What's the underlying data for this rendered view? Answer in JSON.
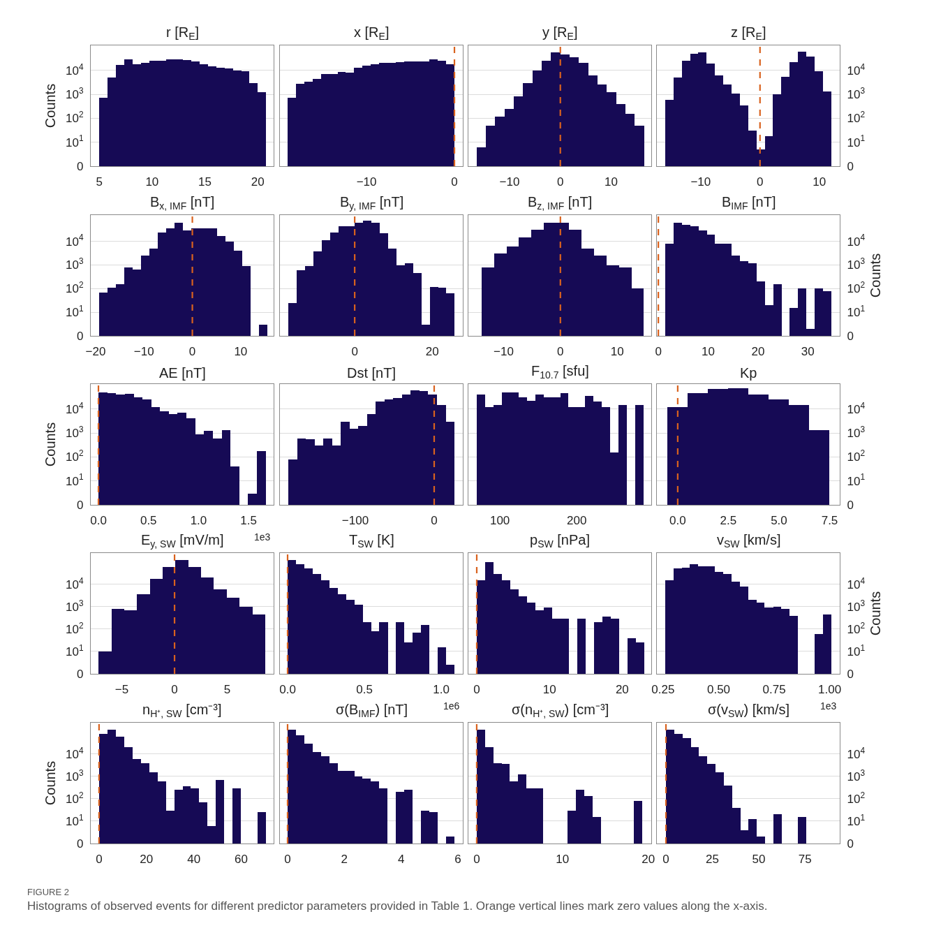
{
  "chart_data": [
    {
      "type": "histogram",
      "title": "r [R$_{E}$]",
      "ylabel": "Counts",
      "log": true,
      "grid": "y",
      "xlim": [
        4.2,
        21.5
      ],
      "xticks": [
        5,
        10,
        15,
        20
      ],
      "ylim": [
        0,
        110000
      ],
      "yticks": [
        0,
        {
          "value": 10,
          "label": "10$^{1}$"
        },
        {
          "value": 100,
          "label": "10$^{2}$"
        },
        {
          "value": 1000,
          "label": "10$^{3}$"
        },
        {
          "value": 10000,
          "label": "10$^{4}$"
        }
      ],
      "bins": [
        5,
        5.79,
        6.58,
        7.37,
        8.16,
        8.95,
        9.74,
        10.53,
        11.32,
        12.11,
        12.9,
        13.69,
        14.48,
        15.27,
        16.06,
        16.85,
        17.64,
        18.43,
        19.22,
        20.01,
        20.8
      ],
      "series": [
        {
          "color": "#160a55",
          "values": [
            700,
            5000,
            17000,
            28000,
            18000,
            21000,
            25000,
            26000,
            29000,
            28000,
            27000,
            24000,
            18000,
            15000,
            13000,
            12000,
            10000,
            9000,
            3000,
            1200
          ]
        }
      ]
    },
    {
      "type": "histogram",
      "title": "x [R$_{E}$]",
      "log": true,
      "grid": "y",
      "tick_labels": "x",
      "xlim": [
        -19.85,
        0.95
      ],
      "xticks": [
        {
          "value": -10,
          "label": "−10"
        },
        0
      ],
      "ylim": [
        0,
        110000
      ],
      "yticks": [
        {
          "value": 10,
          "label": null
        },
        {
          "value": 100,
          "label": null
        },
        {
          "value": 1000,
          "label": null
        },
        {
          "value": 10000,
          "label": null
        }
      ],
      "bins": [
        -19,
        -18.05,
        -17.1,
        -16.15,
        -15.2,
        -14.25,
        -13.3,
        -12.35,
        -11.4,
        -10.45,
        -9.5,
        -8.55,
        -7.6,
        -6.65,
        -5.7,
        -4.75,
        -3.8,
        -2.85,
        -1.9,
        -0.95,
        0
      ],
      "series": [
        {
          "color": "#160a55",
          "values": [
            700,
            2800,
            3300,
            4300,
            7000,
            6800,
            8500,
            8200,
            13000,
            16000,
            18000,
            20000,
            21000,
            22000,
            23000,
            24000,
            23000,
            28000,
            26000,
            18000
          ]
        }
      ],
      "ref_lines": [
        {
          "axis": "x",
          "value": 0,
          "color": "#d9621e",
          "line_style": "dashed"
        }
      ]
    },
    {
      "type": "histogram",
      "title": "y [R$_{E}$]",
      "log": true,
      "grid": "y",
      "tick_labels": "x",
      "xlim": [
        -18.1,
        17.9
      ],
      "xticks": [
        {
          "value": -10,
          "label": "−10"
        },
        0,
        10
      ],
      "ylim": [
        0,
        110000
      ],
      "yticks": [
        {
          "value": 10,
          "label": null
        },
        {
          "value": 100,
          "label": null
        },
        {
          "value": 1000,
          "label": null
        },
        {
          "value": 10000,
          "label": null
        }
      ],
      "bins": [
        -16.5,
        -14.67,
        -12.83,
        -11,
        -9.17,
        -7.33,
        -5.5,
        -3.67,
        -1.83,
        0,
        1.83,
        3.67,
        5.5,
        7.33,
        9.17,
        11,
        12.83,
        14.67,
        16.5
      ],
      "series": [
        {
          "color": "#160a55",
          "values": [
            6,
            50,
            120,
            250,
            800,
            3000,
            10000,
            25000,
            55000,
            45000,
            35000,
            20000,
            6000,
            2500,
            1200,
            400,
            150,
            50
          ]
        }
      ],
      "ref_lines": [
        {
          "axis": "x",
          "value": 0,
          "color": "#d9621e",
          "line_style": "dashed"
        }
      ]
    },
    {
      "type": "histogram",
      "title": "z [R$_{E}$]",
      "log": "y2",
      "grid": "y",
      "xlim": [
        -17.4,
        13.45
      ],
      "xticks": [
        {
          "value": -10,
          "label": "−10"
        },
        0,
        10
      ],
      "y2lim": [
        0,
        110000
      ],
      "y2ticks": [
        0,
        {
          "value": 10,
          "label": "10$^{1}$"
        },
        {
          "value": 100,
          "label": "10$^{2}$"
        },
        {
          "value": 1000,
          "label": "10$^{3}$"
        },
        {
          "value": 10000,
          "label": "10$^{4}$"
        }
      ],
      "bins": [
        -16,
        -14.6,
        -13.2,
        -11.8,
        -10.4,
        -9,
        -7.6,
        -6.2,
        -4.8,
        -3.4,
        -2,
        -0.6,
        0.8,
        2.2,
        3.6,
        5,
        6.4,
        7.8,
        9.2,
        10.6,
        12
      ],
      "series": [
        {
          "color": "#160a55",
          "axis": "y2",
          "values": [
            600,
            5000,
            25000,
            50000,
            55000,
            19000,
            6000,
            2600,
            1100,
            340,
            30,
            5,
            18,
            1000,
            5500,
            22000,
            60000,
            38000,
            9500,
            1300
          ]
        }
      ],
      "ref_lines": [
        {
          "axis": "x",
          "value": 0,
          "color": "#d9621e",
          "line_style": "dashed"
        }
      ]
    },
    {
      "type": "histogram",
      "title": "B$_{x, IMF}$ [nT]",
      "log": true,
      "grid": "y",
      "xlim": [
        -21,
        16.8
      ],
      "xticks": [
        {
          "value": -20,
          "label": "−20"
        },
        {
          "value": -10,
          "label": "−10"
        },
        0,
        10
      ],
      "ylim": [
        0,
        130000
      ],
      "yticks": [
        0,
        {
          "value": 10,
          "label": "10$^{1}$"
        },
        {
          "value": 100,
          "label": "10$^{2}$"
        },
        {
          "value": 1000,
          "label": "10$^{3}$"
        },
        {
          "value": 10000,
          "label": "10$^{4}$"
        }
      ],
      "bins": [
        -19.3,
        -17.56,
        -15.82,
        -14.08,
        -12.34,
        -10.6,
        -8.86,
        -7.12,
        -5.38,
        -3.64,
        -1.9,
        -0.16,
        1.58,
        3.32,
        5.06,
        6.8,
        8.54,
        10.28,
        12.02,
        13.76,
        15.5
      ],
      "series": [
        {
          "color": "#160a55",
          "values": [
            70,
            110,
            150,
            800,
            650,
            2500,
            5000,
            23000,
            35000,
            60000,
            30000,
            35000,
            35000,
            35000,
            17000,
            9500,
            4000,
            900,
            0,
            3
          ]
        }
      ],
      "ref_lines": [
        {
          "axis": "x",
          "value": 0,
          "color": "#d9621e",
          "line_style": "dashed"
        }
      ]
    },
    {
      "type": "histogram",
      "title": "B$_{y, IMF}$ [nT]",
      "log": true,
      "grid": "y",
      "tick_labels": "x",
      "xlim": [
        -19.3,
        27.9
      ],
      "xticks": [
        0,
        20
      ],
      "ylim": [
        0,
        130000
      ],
      "yticks": [
        {
          "value": 10,
          "label": null
        },
        {
          "value": 100,
          "label": null
        },
        {
          "value": 1000,
          "label": null
        },
        {
          "value": 10000,
          "label": null
        }
      ],
      "bins": [
        -17.1,
        -14.96,
        -12.81,
        -10.67,
        -8.52,
        -6.38,
        -4.23,
        -2.09,
        0.06,
        2.2,
        4.35,
        6.5,
        8.64,
        10.79,
        12.93,
        15.08,
        17.22,
        19.37,
        21.51,
        23.66,
        25.8
      ],
      "series": [
        {
          "color": "#160a55",
          "values": [
            25,
            600,
            900,
            3800,
            11000,
            23000,
            45000,
            45000,
            60000,
            75000,
            60000,
            22000,
            5000,
            1000,
            1200,
            450,
            3,
            120,
            110,
            65
          ]
        }
      ],
      "ref_lines": [
        {
          "axis": "x",
          "value": 0,
          "color": "#d9621e",
          "line_style": "dashed"
        }
      ]
    },
    {
      "type": "histogram",
      "title": "B$_{z, IMF}$ [nT]",
      "log": true,
      "grid": "y",
      "tick_labels": "x",
      "xlim": [
        -16.2,
        16.0
      ],
      "xticks": [
        {
          "value": -10,
          "label": "−10"
        },
        0,
        10
      ],
      "ylim": [
        0,
        130000
      ],
      "yticks": [
        {
          "value": 10,
          "label": null
        },
        {
          "value": 100,
          "label": null
        },
        {
          "value": 1000,
          "label": null
        },
        {
          "value": 10000,
          "label": null
        }
      ],
      "bins": [
        -13.9,
        -11.7,
        -9.5,
        -7.3,
        -5.1,
        -2.9,
        -0.7,
        1.5,
        3.7,
        5.9,
        8.1,
        10.3,
        12.5,
        14.7
      ],
      "series": [
        {
          "color": "#160a55",
          "values": [
            800,
            3000,
            6000,
            15000,
            32000,
            60000,
            60000,
            32000,
            5000,
            2500,
            1000,
            800,
            100
          ]
        }
      ],
      "ref_lines": [
        {
          "axis": "x",
          "value": 0,
          "color": "#d9621e",
          "line_style": "dashed"
        }
      ]
    },
    {
      "type": "histogram",
      "title": "B$_{IMF}$ [nT]",
      "y2label": "Counts",
      "log": "y2",
      "grid": "y",
      "xlim": [
        -0.3,
        36.4
      ],
      "xticks": [
        0,
        10,
        20,
        30
      ],
      "y2lim": [
        0,
        130000
      ],
      "y2ticks": [
        0,
        {
          "value": 10,
          "label": "10$^{1}$"
        },
        {
          "value": 100,
          "label": "10$^{2}$"
        },
        {
          "value": 1000,
          "label": "10$^{3}$"
        },
        {
          "value": 10000,
          "label": "10$^{4}$"
        }
      ],
      "bins": [
        1.4,
        3.07,
        4.73,
        6.4,
        8.06,
        9.73,
        11.39,
        13.06,
        14.72,
        16.39,
        18.05,
        19.72,
        21.38,
        23.05,
        24.71,
        26.38,
        28.04,
        29.71,
        31.37,
        33.04,
        34.7
      ],
      "series": [
        {
          "color": "#160a55",
          "axis": "y2",
          "values": [
            8000,
            60000,
            50000,
            45000,
            30000,
            20000,
            8000,
            8000,
            2500,
            1500,
            1200,
            200,
            20,
            150,
            0,
            15,
            100,
            2,
            100,
            80
          ]
        }
      ],
      "ref_lines": [
        {
          "axis": "x",
          "value": 0,
          "color": "#d9621e",
          "line_style": "dashed"
        }
      ]
    },
    {
      "type": "histogram",
      "title": "AE [nT]",
      "ylabel": "Counts",
      "log": true,
      "grid": "y",
      "xlim": [
        -0.077,
        1.75
      ],
      "xticks": [
        {
          "value": 0,
          "label": "0.0"
        },
        {
          "value": 0.5,
          "label": "0.5"
        },
        {
          "value": 1,
          "label": "1.0"
        },
        {
          "value": 1.5,
          "label": "1.5"
        }
      ],
      "ylim": [
        0,
        110000
      ],
      "yticks": [
        0,
        {
          "value": 10,
          "label": "10$^{1}$"
        },
        {
          "value": 100,
          "label": "10$^{2}$"
        },
        {
          "value": 1000,
          "label": "10$^{3}$"
        },
        {
          "value": 10000,
          "label": "10$^{4}$"
        }
      ],
      "bins": [
        0,
        0.088,
        0.176,
        0.264,
        0.352,
        0.44,
        0.527,
        0.615,
        0.703,
        0.791,
        0.879,
        0.967,
        1.055,
        1.143,
        1.231,
        1.319,
        1.406,
        1.494,
        1.582,
        1.67
      ],
      "series": [
        {
          "color": "#160a55",
          "values": [
            50000,
            45000,
            40000,
            42000,
            30000,
            25000,
            12000,
            8000,
            6000,
            7000,
            4000,
            900,
            1200,
            600,
            1300,
            40,
            0,
            3,
            170
          ]
        }
      ],
      "ref_lines": [
        {
          "axis": "x",
          "value": 0,
          "color": "#d9621e",
          "line_style": "dashed"
        }
      ],
      "annotations": [
        "1e3"
      ]
    },
    {
      "type": "histogram",
      "title": "Dst [nT]",
      "log": true,
      "grid": "y",
      "tick_labels": "x",
      "xlim": [
        -195.6,
        36.3
      ],
      "xticks": [
        {
          "value": -100,
          "label": "−100"
        },
        0
      ],
      "ylim": [
        0,
        110000
      ],
      "yticks": [
        {
          "value": 10,
          "label": null
        },
        {
          "value": 100,
          "label": null
        },
        {
          "value": 1000,
          "label": null
        },
        {
          "value": 10000,
          "label": null
        }
      ],
      "bins": [
        -185,
        -173.91,
        -162.82,
        -151.73,
        -140.64,
        -129.55,
        -118.46,
        -107.37,
        -96.28,
        -85.19,
        -74.1,
        -63.01,
        -51.92,
        -40.83,
        -29.74,
        -18.65,
        -7.56,
        3.53,
        14.62,
        25.7
      ],
      "series": [
        {
          "color": "#160a55",
          "values": [
            80,
            600,
            550,
            300,
            600,
            300,
            3000,
            1500,
            2000,
            6000,
            20000,
            25000,
            28000,
            40000,
            60000,
            55000,
            40000,
            15000,
            3000
          ]
        }
      ],
      "ref_lines": [
        {
          "axis": "x",
          "value": 0,
          "color": "#d9621e",
          "line_style": "dashed"
        }
      ]
    },
    {
      "type": "histogram",
      "title": "F$_{10.7}$ [sfu]",
      "log": true,
      "grid": "y",
      "tick_labels": "x",
      "xlim": [
        59,
        297
      ],
      "xticks": [
        100,
        200
      ],
      "ylim": [
        0,
        110000
      ],
      "yticks": [
        {
          "value": 10,
          "label": null
        },
        {
          "value": 100,
          "label": null
        },
        {
          "value": 1000,
          "label": null
        },
        {
          "value": 10000,
          "label": null
        }
      ],
      "bins": [
        70,
        80.85,
        91.7,
        102.55,
        113.4,
        124.25,
        135.1,
        145.95,
        156.8,
        167.65,
        178.5,
        189.35,
        200.2,
        211.05,
        221.9,
        232.75,
        243.6,
        254.45,
        265.3,
        276.15,
        287
      ],
      "series": [
        {
          "color": "#160a55",
          "values": [
            40000,
            12000,
            15000,
            50000,
            50000,
            30000,
            22000,
            40000,
            30000,
            30000,
            45000,
            12000,
            12000,
            35000,
            20000,
            12000,
            150,
            15000,
            0,
            15000
          ]
        }
      ]
    },
    {
      "type": "histogram",
      "title": "Kp",
      "log": "y2",
      "grid": "y",
      "xlim": [
        -1.03,
        8.0
      ],
      "xticks": [
        {
          "value": 0,
          "label": "0.0"
        },
        {
          "value": 2.5,
          "label": "2.5"
        },
        {
          "value": 5,
          "label": "5.0"
        },
        {
          "value": 7.5,
          "label": "7.5"
        }
      ],
      "y2lim": [
        0,
        110000
      ],
      "y2ticks": [
        0,
        {
          "value": 10,
          "label": "10$^{1}$"
        },
        {
          "value": 100,
          "label": "10$^{2}$"
        },
        {
          "value": 1000,
          "label": "10$^{3}$"
        },
        {
          "value": 10000,
          "label": "10$^{4}$"
        }
      ],
      "bins": [
        -0.5,
        0.5,
        1.5,
        2.5,
        3.5,
        4.5,
        5.5,
        6.5,
        7.5
      ],
      "series": [
        {
          "color": "#160a55",
          "axis": "y2",
          "values": [
            12000,
            45000,
            70000,
            75000,
            40000,
            25000,
            15000,
            1300
          ]
        }
      ],
      "ref_lines": [
        {
          "axis": "x",
          "value": 0,
          "color": "#d9621e",
          "line_style": "dashed"
        }
      ]
    },
    {
      "type": "histogram",
      "title": "E$_{y, SW}$ [mV/m]",
      "log": true,
      "grid": "y",
      "xlim": [
        -7.95,
        9.4
      ],
      "xticks": [
        {
          "value": -5,
          "label": "−5"
        },
        0,
        5
      ],
      "ylim": [
        0,
        250000
      ],
      "yticks": [
        0,
        {
          "value": 10,
          "label": "10$^{1}$"
        },
        {
          "value": 100,
          "label": "10$^{2}$"
        },
        {
          "value": 1000,
          "label": "10$^{3}$"
        },
        {
          "value": 10000,
          "label": "10$^{4}$"
        }
      ],
      "bins": [
        -7.2,
        -5.985,
        -4.77,
        -3.555,
        -2.34,
        -1.125,
        0.09,
        1.305,
        2.52,
        3.735,
        4.95,
        6.165,
        7.38,
        8.595
      ],
      "series": [
        {
          "color": "#160a55",
          "values": [
            10,
            800,
            700,
            3500,
            18000,
            60000,
            120000,
            60000,
            20000,
            6000,
            2500,
            1000,
            450
          ]
        }
      ],
      "ref_lines": [
        {
          "axis": "x",
          "value": 0,
          "color": "#d9621e",
          "line_style": "dashed"
        }
      ]
    },
    {
      "type": "histogram",
      "title": "T$_{SW}$ [K]",
      "log": true,
      "grid": "y",
      "tick_labels": "x",
      "xlim": [
        -0.05,
        1.14
      ],
      "xticks": [
        {
          "value": 0,
          "label": "0.0"
        },
        {
          "value": 0.5,
          "label": "0.5"
        },
        {
          "value": 1,
          "label": "1.0"
        }
      ],
      "ylim": [
        0,
        250000
      ],
      "yticks": [
        {
          "value": 10,
          "label": null
        },
        {
          "value": 100,
          "label": null
        },
        {
          "value": 1000,
          "label": null
        },
        {
          "value": 10000,
          "label": null
        }
      ],
      "bins": [
        0,
        0.054,
        0.109,
        0.163,
        0.217,
        0.272,
        0.326,
        0.38,
        0.434,
        0.489,
        0.543,
        0.597,
        0.652,
        0.706,
        0.76,
        0.815,
        0.869,
        0.923,
        0.977,
        1.032,
        1.086
      ],
      "series": [
        {
          "color": "#160a55",
          "values": [
            120000,
            80000,
            50000,
            30000,
            15000,
            7000,
            3500,
            2000,
            1200,
            200,
            80,
            200,
            0,
            200,
            25,
            70,
            150,
            0,
            15,
            2.5
          ]
        }
      ],
      "ref_lines": [
        {
          "axis": "x",
          "value": 0,
          "color": "#d9621e",
          "line_style": "dashed"
        }
      ],
      "annotations": [
        "1e6"
      ]
    },
    {
      "type": "histogram",
      "title": "p$_{SW}$ [nPa]",
      "log": true,
      "grid": "y",
      "tick_labels": "x",
      "xlim": [
        -1.15,
        24.0
      ],
      "xticks": [
        0,
        10,
        20
      ],
      "ylim": [
        0,
        250000
      ],
      "yticks": [
        {
          "value": 10,
          "label": null
        },
        {
          "value": 100,
          "label": null
        },
        {
          "value": 1000,
          "label": null
        },
        {
          "value": 10000,
          "label": null
        }
      ],
      "bins": [
        0,
        1.15,
        2.3,
        3.45,
        4.6,
        5.75,
        6.9,
        8.05,
        9.2,
        10.35,
        11.5,
        12.65,
        13.8,
        14.95,
        16.1,
        17.25,
        18.4,
        19.55,
        20.7,
        21.85,
        23
      ],
      "series": [
        {
          "color": "#160a55",
          "values": [
            15000,
            100000,
            30000,
            15000,
            6000,
            3000,
            1500,
            700,
            900,
            300,
            300,
            0,
            300,
            0,
            200,
            350,
            300,
            0,
            40,
            25
          ]
        }
      ],
      "ref_lines": [
        {
          "axis": "x",
          "value": 0,
          "color": "#d9621e",
          "line_style": "dashed"
        }
      ]
    },
    {
      "type": "histogram",
      "title": "v$_{SW}$ [km/s]",
      "y2label": "Counts",
      "log": "y2",
      "grid": "y",
      "xlim": [
        0.222,
        1.045
      ],
      "xticks": [
        {
          "value": 0.25,
          "label": "0.25"
        },
        {
          "value": 0.5,
          "label": "0.50"
        },
        {
          "value": 0.75,
          "label": "0.75"
        },
        {
          "value": 1,
          "label": "1.00"
        }
      ],
      "y2lim": [
        0,
        250000
      ],
      "y2ticks": [
        0,
        {
          "value": 10,
          "label": "10$^{1}$"
        },
        {
          "value": 100,
          "label": "10$^{2}$"
        },
        {
          "value": 1000,
          "label": "10$^{3}$"
        },
        {
          "value": 10000,
          "label": "10$^{4}$"
        }
      ],
      "bins": [
        0.259,
        0.296,
        0.334,
        0.371,
        0.408,
        0.446,
        0.483,
        0.52,
        0.558,
        0.595,
        0.633,
        0.67,
        0.707,
        0.745,
        0.782,
        0.819,
        0.857,
        0.894,
        0.931,
        0.969,
        1.006
      ],
      "series": [
        {
          "color": "#160a55",
          "axis": "y2",
          "values": [
            15000,
            50000,
            55000,
            80000,
            65000,
            65000,
            35000,
            30000,
            13000,
            8000,
            2000,
            1500,
            900,
            1000,
            800,
            400,
            0,
            0,
            60,
            450
          ]
        }
      ],
      "annotations": [
        "1e3"
      ]
    },
    {
      "type": "histogram",
      "title": "n$_{H⁺, SW}$ [cm⁻³]",
      "ylabel": "Counts",
      "log": true,
      "grid": "y",
      "xlim": [
        -3.5,
        73.7
      ],
      "xticks": [
        0,
        20,
        40,
        60
      ],
      "ylim": [
        0,
        250000
      ],
      "yticks": [
        0,
        {
          "value": 10,
          "label": "10$^{1}$"
        },
        {
          "value": 100,
          "label": "10$^{2}$"
        },
        {
          "value": 1000,
          "label": "10$^{3}$"
        },
        {
          "value": 10000,
          "label": "10$^{4}$"
        }
      ],
      "bins": [
        0,
        3.525,
        7.05,
        10.575,
        14.1,
        17.625,
        21.15,
        24.675,
        28.2,
        31.725,
        35.25,
        38.775,
        42.3,
        45.825,
        49.35,
        52.875,
        56.4,
        59.925,
        63.45,
        66.975,
        70.5
      ],
      "series": [
        {
          "color": "#160a55",
          "values": [
            80000,
            120000,
            60000,
            20000,
            6000,
            4000,
            1500,
            600,
            30,
            250,
            350,
            300,
            70,
            6,
            700,
            0,
            300,
            0,
            0,
            25
          ]
        }
      ],
      "ref_lines": [
        {
          "axis": "x",
          "value": 0,
          "color": "#d9621e",
          "line_style": "dashed"
        }
      ]
    },
    {
      "type": "histogram",
      "title": "σ(B$_{IMF}$) [nT]",
      "log": true,
      "grid": "y",
      "tick_labels": "x",
      "xlim": [
        -0.27,
        6.17
      ],
      "xticks": [
        0,
        2,
        4,
        6
      ],
      "ylim": [
        0,
        250000
      ],
      "yticks": [
        {
          "value": 10,
          "label": null
        },
        {
          "value": 100,
          "label": null
        },
        {
          "value": 1000,
          "label": null
        },
        {
          "value": 10000,
          "label": null
        }
      ],
      "bins": [
        0,
        0.294,
        0.587,
        0.881,
        1.174,
        1.468,
        1.761,
        2.055,
        2.348,
        2.642,
        2.935,
        3.229,
        3.522,
        3.816,
        4.109,
        4.403,
        4.696,
        4.99,
        5.283,
        5.577,
        5.87
      ],
      "series": [
        {
          "color": "#160a55",
          "values": [
            120000,
            70000,
            30000,
            12000,
            8000,
            4000,
            1800,
            1700,
            1000,
            800,
            600,
            300,
            0,
            200,
            250,
            0,
            30,
            25,
            0,
            2
          ]
        }
      ],
      "ref_lines": [
        {
          "axis": "x",
          "value": 0,
          "color": "#d9621e",
          "line_style": "dashed"
        }
      ]
    },
    {
      "type": "histogram",
      "title": "σ(n$_{H⁺, SW}$) [cm⁻³]",
      "log": true,
      "grid": "y",
      "tick_labels": "x",
      "xlim": [
        -0.97,
        20.35
      ],
      "xticks": [
        0,
        10,
        20
      ],
      "ylim": [
        0,
        250000
      ],
      "yticks": [
        {
          "value": 10,
          "label": null
        },
        {
          "value": 100,
          "label": null
        },
        {
          "value": 1000,
          "label": null
        },
        {
          "value": 10000,
          "label": null
        }
      ],
      "bins": [
        0,
        0.965,
        1.93,
        2.895,
        3.86,
        4.825,
        5.79,
        6.755,
        7.72,
        8.685,
        9.65,
        10.615,
        11.58,
        12.545,
        13.51,
        14.475,
        15.44,
        16.405,
        17.37,
        18.335,
        19.3
      ],
      "series": [
        {
          "color": "#160a55",
          "values": [
            120000,
            20000,
            4000,
            3500,
            600,
            1200,
            300,
            300,
            0,
            0,
            0,
            30,
            250,
            130,
            15,
            0,
            0,
            0,
            0,
            80
          ]
        }
      ],
      "ref_lines": [
        {
          "axis": "x",
          "value": 0,
          "color": "#d9621e",
          "line_style": "dashed"
        }
      ]
    },
    {
      "type": "histogram",
      "title": "σ(v$_{SW}$) [km/s]",
      "log": "y2",
      "grid": "y",
      "xlim": [
        -4.9,
        93.7
      ],
      "xticks": [
        0,
        25,
        50,
        75
      ],
      "y2lim": [
        0,
        250000
      ],
      "y2ticks": [
        0,
        {
          "value": 10,
          "label": "10$^{1}$"
        },
        {
          "value": 100,
          "label": "10$^{2}$"
        },
        {
          "value": 1000,
          "label": "10$^{3}$"
        },
        {
          "value": 10000,
          "label": "10$^{4}$"
        }
      ],
      "bins": [
        0,
        4.453,
        8.906,
        13.359,
        17.812,
        22.265,
        26.718,
        31.171,
        35.624,
        40.077,
        44.53,
        48.983,
        53.436,
        57.889,
        62.342,
        66.795,
        71.248,
        75.7
      ],
      "series": [
        {
          "color": "#160a55",
          "axis": "y2",
          "values": [
            120000,
            80000,
            50000,
            20000,
            8000,
            3500,
            1500,
            400,
            40,
            4,
            12,
            2,
            0,
            20,
            0,
            0,
            15
          ]
        }
      ],
      "ref_lines": [
        {
          "axis": "x",
          "value": 0,
          "color": "#d9621e",
          "line_style": "dashed"
        }
      ]
    },
    {
      "type": "other",
      "annotations": [
        "FIGURE 2",
        "Histograms of observed events for different predictor parameters provided in Table 1. Orange vertical lines mark zero values along the x-axis."
      ]
    }
  ]
}
